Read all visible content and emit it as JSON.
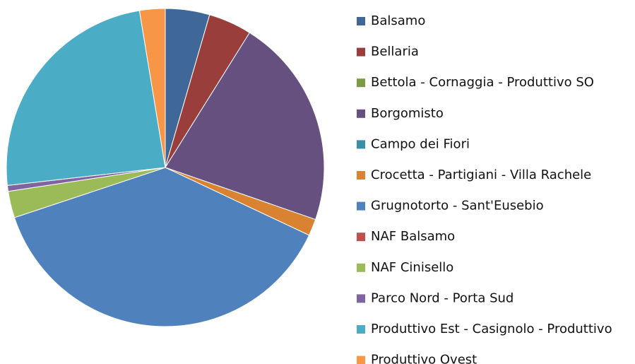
{
  "chart_data": {
    "type": "pie",
    "categories": [
      "Balsamo",
      "Bellaria",
      "Bettola - Cornaggia - Produttivo SO",
      "Borgomisto",
      "Campo dei Fiori",
      "Crocetta - Partigiani - Villa Rachele",
      "Grugnotorto - Sant'Eusebio",
      "NAF Balsamo",
      "NAF Cinisello",
      "Parco Nord - Porta Sud",
      "Produttivo Est - Casignolo - Produttivo",
      "Produttivo Ovest"
    ],
    "values": [
      4.5,
      4.4,
      0,
      21.4,
      0,
      1.7,
      37.9,
      0,
      2.7,
      0.6,
      24.2,
      2.6
    ],
    "colors": [
      "#3F6797",
      "#9A3E3B",
      "#7D9946",
      "#66507F",
      "#3A8EA5",
      "#D98332",
      "#4F81BD",
      "#C0504D",
      "#9BBB59",
      "#8064A2",
      "#4BACC6",
      "#F79646"
    ],
    "legend": "right"
  }
}
